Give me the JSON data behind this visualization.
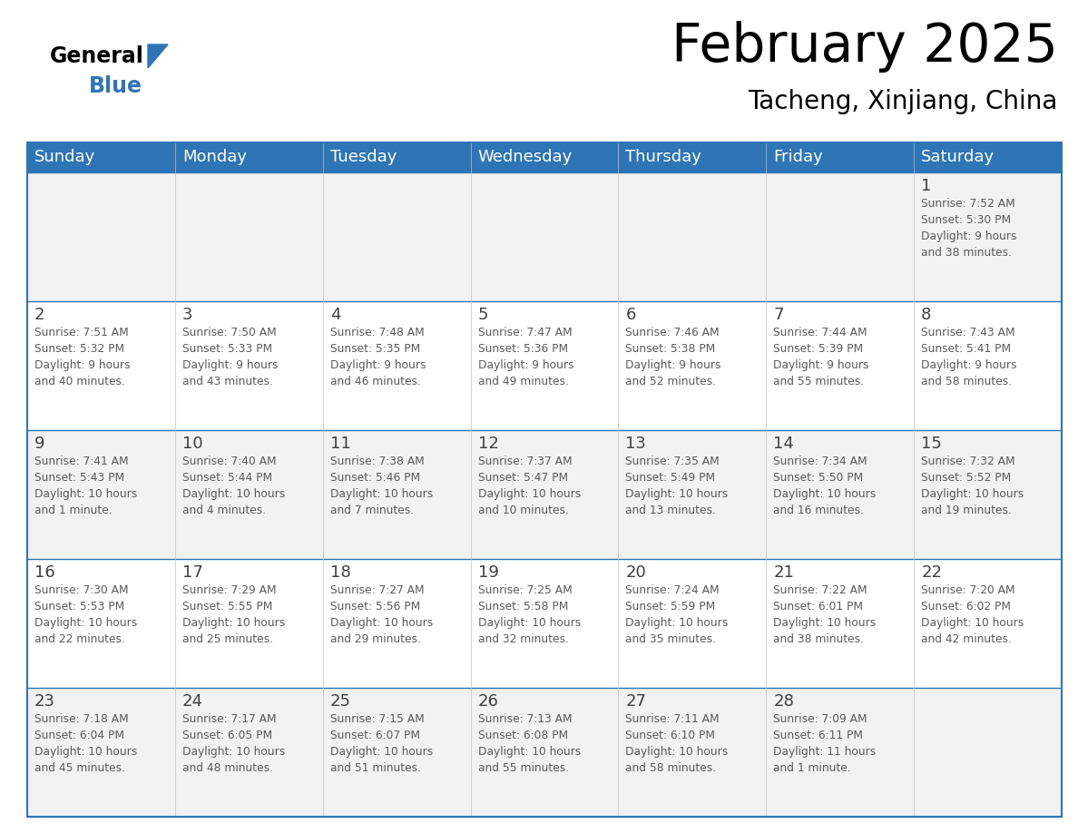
{
  "title": "February 2025",
  "subtitle": "Tacheng, Xinjiang, China",
  "header_color": "#2E75B6",
  "header_text_color": "#FFFFFF",
  "bg_color": "#FFFFFF",
  "cell_bg_even": "#F2F2F2",
  "cell_bg_odd": "#FFFFFF",
  "border_color": "#2E75B6",
  "day_names": [
    "Sunday",
    "Monday",
    "Tuesday",
    "Wednesday",
    "Thursday",
    "Friday",
    "Saturday"
  ],
  "text_color": "#595959",
  "day_num_color": "#404040",
  "calendar": [
    [
      {
        "day": "",
        "info": ""
      },
      {
        "day": "",
        "info": ""
      },
      {
        "day": "",
        "info": ""
      },
      {
        "day": "",
        "info": ""
      },
      {
        "day": "",
        "info": ""
      },
      {
        "day": "",
        "info": ""
      },
      {
        "day": "1",
        "info": "Sunrise: 7:52 AM\nSunset: 5:30 PM\nDaylight: 9 hours\nand 38 minutes."
      }
    ],
    [
      {
        "day": "2",
        "info": "Sunrise: 7:51 AM\nSunset: 5:32 PM\nDaylight: 9 hours\nand 40 minutes."
      },
      {
        "day": "3",
        "info": "Sunrise: 7:50 AM\nSunset: 5:33 PM\nDaylight: 9 hours\nand 43 minutes."
      },
      {
        "day": "4",
        "info": "Sunrise: 7:48 AM\nSunset: 5:35 PM\nDaylight: 9 hours\nand 46 minutes."
      },
      {
        "day": "5",
        "info": "Sunrise: 7:47 AM\nSunset: 5:36 PM\nDaylight: 9 hours\nand 49 minutes."
      },
      {
        "day": "6",
        "info": "Sunrise: 7:46 AM\nSunset: 5:38 PM\nDaylight: 9 hours\nand 52 minutes."
      },
      {
        "day": "7",
        "info": "Sunrise: 7:44 AM\nSunset: 5:39 PM\nDaylight: 9 hours\nand 55 minutes."
      },
      {
        "day": "8",
        "info": "Sunrise: 7:43 AM\nSunset: 5:41 PM\nDaylight: 9 hours\nand 58 minutes."
      }
    ],
    [
      {
        "day": "9",
        "info": "Sunrise: 7:41 AM\nSunset: 5:43 PM\nDaylight: 10 hours\nand 1 minute."
      },
      {
        "day": "10",
        "info": "Sunrise: 7:40 AM\nSunset: 5:44 PM\nDaylight: 10 hours\nand 4 minutes."
      },
      {
        "day": "11",
        "info": "Sunrise: 7:38 AM\nSunset: 5:46 PM\nDaylight: 10 hours\nand 7 minutes."
      },
      {
        "day": "12",
        "info": "Sunrise: 7:37 AM\nSunset: 5:47 PM\nDaylight: 10 hours\nand 10 minutes."
      },
      {
        "day": "13",
        "info": "Sunrise: 7:35 AM\nSunset: 5:49 PM\nDaylight: 10 hours\nand 13 minutes."
      },
      {
        "day": "14",
        "info": "Sunrise: 7:34 AM\nSunset: 5:50 PM\nDaylight: 10 hours\nand 16 minutes."
      },
      {
        "day": "15",
        "info": "Sunrise: 7:32 AM\nSunset: 5:52 PM\nDaylight: 10 hours\nand 19 minutes."
      }
    ],
    [
      {
        "day": "16",
        "info": "Sunrise: 7:30 AM\nSunset: 5:53 PM\nDaylight: 10 hours\nand 22 minutes."
      },
      {
        "day": "17",
        "info": "Sunrise: 7:29 AM\nSunset: 5:55 PM\nDaylight: 10 hours\nand 25 minutes."
      },
      {
        "day": "18",
        "info": "Sunrise: 7:27 AM\nSunset: 5:56 PM\nDaylight: 10 hours\nand 29 minutes."
      },
      {
        "day": "19",
        "info": "Sunrise: 7:25 AM\nSunset: 5:58 PM\nDaylight: 10 hours\nand 32 minutes."
      },
      {
        "day": "20",
        "info": "Sunrise: 7:24 AM\nSunset: 5:59 PM\nDaylight: 10 hours\nand 35 minutes."
      },
      {
        "day": "21",
        "info": "Sunrise: 7:22 AM\nSunset: 6:01 PM\nDaylight: 10 hours\nand 38 minutes."
      },
      {
        "day": "22",
        "info": "Sunrise: 7:20 AM\nSunset: 6:02 PM\nDaylight: 10 hours\nand 42 minutes."
      }
    ],
    [
      {
        "day": "23",
        "info": "Sunrise: 7:18 AM\nSunset: 6:04 PM\nDaylight: 10 hours\nand 45 minutes."
      },
      {
        "day": "24",
        "info": "Sunrise: 7:17 AM\nSunset: 6:05 PM\nDaylight: 10 hours\nand 48 minutes."
      },
      {
        "day": "25",
        "info": "Sunrise: 7:15 AM\nSunset: 6:07 PM\nDaylight: 10 hours\nand 51 minutes."
      },
      {
        "day": "26",
        "info": "Sunrise: 7:13 AM\nSunset: 6:08 PM\nDaylight: 10 hours\nand 55 minutes."
      },
      {
        "day": "27",
        "info": "Sunrise: 7:11 AM\nSunset: 6:10 PM\nDaylight: 10 hours\nand 58 minutes."
      },
      {
        "day": "28",
        "info": "Sunrise: 7:09 AM\nSunset: 6:11 PM\nDaylight: 11 hours\nand 1 minute."
      },
      {
        "day": "",
        "info": ""
      }
    ]
  ],
  "logo_text1": "General",
  "logo_text2": "Blue",
  "logo_color1": "#000000",
  "logo_color2": "#2E75B6",
  "logo_triangle_color": "#2E75B6"
}
